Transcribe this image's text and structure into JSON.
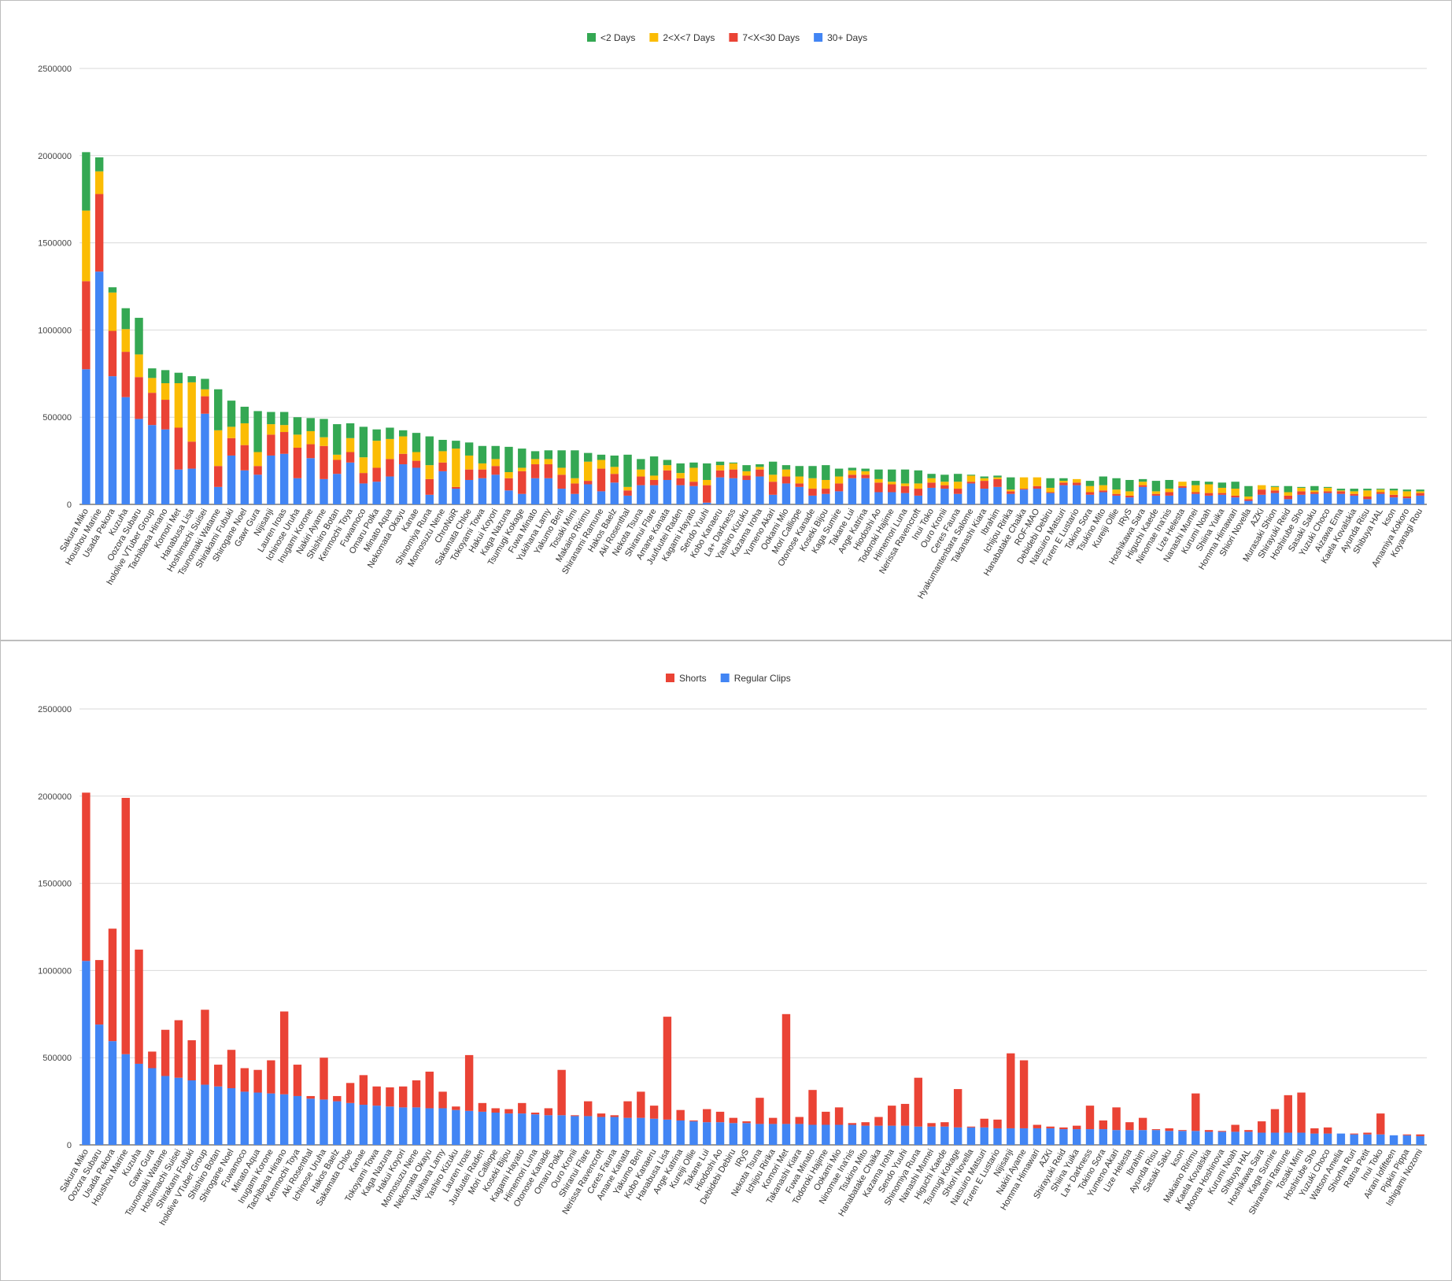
{
  "colors": {
    "lt2": "#34a853",
    "d2to7": "#fbbc04",
    "d7to30": "#ea4335",
    "d30plus": "#4285f4",
    "shorts": "#ea4335",
    "regular": "#4285f4"
  },
  "chart_data": [
    {
      "type": "bar",
      "stacked": true,
      "legend_position": "top",
      "grid": true,
      "ylim": [
        0,
        2500000
      ],
      "yticks": [
        "0",
        "500000",
        "1000000",
        "1500000",
        "2000000",
        "2500000"
      ],
      "categories": [
        "Sakura Miko",
        "Houshou Marine",
        "Usada Pekora",
        "Kuzuha",
        "Oozora Subaru",
        "hololive VTuber Group",
        "Tachibana Hinano",
        "Komori Met",
        "Hanabusa Lisa",
        "Hoshimachi Suisei",
        "Tsunomaki Watame",
        "Shirakami Fubuki",
        "Shirogane Noel",
        "Gawr Gura",
        "Nijisanji",
        "Lauren Iroas",
        "Ichinose Uruha",
        "Inugami Korone",
        "Nakiri Ayame",
        "Shishiro Botan",
        "Kenmochi Toya",
        "Fuwamoco",
        "Omaru Polka",
        "Minato Aqua",
        "Nekomata Okayu",
        "Kanae",
        "Shinomiya Runa",
        "Momosuzu Nene",
        "ChroNoiR",
        "Sakamata Chloe",
        "Tokoyami Towa",
        "Hakui Koyori",
        "Kaga Nazuna",
        "Tsumugi Kokage",
        "Fuwa Minato",
        "Yukihana Lamy",
        "Yakumo Beni",
        "Tosaki Mimi",
        "Makaino Ririmu",
        "Shiranami Ramune",
        "Hakos Baelz",
        "Aki Rosenthal",
        "Nekota Tsuna",
        "Shiranui Flare",
        "Amane Kanata",
        "Juufuutei Raden",
        "Kagami Hayato",
        "Sendo Yuuhi",
        "Kobo Kanaeru",
        "La+ Darkness",
        "Yashiro Kizuku",
        "Kazama Iroha",
        "Yumeno Akari",
        "Ookami Mio",
        "Mori Calliope",
        "Otonose Kanade",
        "Koseki Bijou",
        "Kaga Sumire",
        "Takane Lui",
        "Ange Katrina",
        "Hiodoshi Ao",
        "Todoroki Hajime",
        "Himemori Luna",
        "Nerissa Ravencroft",
        "Inui Toko",
        "Ouro Kronii",
        "Ceres Fauna",
        "Hyakumantenbara Salome",
        "Takanashi Kiara",
        "Ibrahim",
        "Ichijou Ririka",
        "Hanabatake Chaika",
        "ROF-MAO",
        "Debidebi Debiru",
        "Natsuiro Matsuri",
        "Furen E Lustario",
        "Tokino Sora",
        "Tsukino Mito",
        "Kureiji Ollie",
        "IRyS",
        "Hoshikawa Sara",
        "Higuchi Kaede",
        "Ninomae Ina'nis",
        "Lize Helesta",
        "Nanashi Mumei",
        "Kurumi Noah",
        "Shiina Yuika",
        "Homma Himawari",
        "Shiori Novella",
        "AZKi",
        "Murasaki Shion",
        "Shirayuki Reid",
        "Hoshirube Sho",
        "Sasaki Saku",
        "Yuzuki Choco",
        "Aizawa Ema",
        "Kaela Kovalskia",
        "Ayunda Risu",
        "Shibuya HAL",
        "kson",
        "Amamiya Kokoro",
        "Koyanagi Rou"
      ],
      "series": [
        {
          "name": "30+ Days",
          "values": [
            775000,
            1335000,
            735000,
            615000,
            490000,
            455000,
            430000,
            200000,
            205000,
            520000,
            100000,
            280000,
            195000,
            170000,
            280000,
            290000,
            150000,
            265000,
            145000,
            175000,
            240000,
            120000,
            130000,
            160000,
            230000,
            210000,
            55000,
            190000,
            90000,
            140000,
            150000,
            170000,
            80000,
            60000,
            150000,
            150000,
            90000,
            60000,
            115000,
            75000,
            125000,
            50000,
            110000,
            110000,
            140000,
            110000,
            105000,
            10000,
            155000,
            150000,
            140000,
            160000,
            55000,
            120000,
            100000,
            50000,
            60000,
            75000,
            150000,
            150000,
            70000,
            70000,
            65000,
            50000,
            95000,
            90000,
            60000,
            120000,
            90000,
            100000,
            60000,
            85000,
            90000,
            65000,
            110000,
            110000,
            55000,
            70000,
            50000,
            40000,
            100000,
            50000,
            50000,
            95000,
            60000,
            50000,
            55000,
            40000,
            20000,
            55000,
            65000,
            30000,
            55000,
            60000,
            65000,
            60000,
            50000,
            30000,
            60000,
            40000,
            35000,
            50000
          ]
        },
        {
          "name": "7<X<30 Days",
          "values": [
            505000,
            445000,
            260000,
            260000,
            240000,
            185000,
            170000,
            240000,
            155000,
            100000,
            120000,
            100000,
            145000,
            50000,
            120000,
            125000,
            175000,
            80000,
            190000,
            80000,
            60000,
            60000,
            80000,
            100000,
            60000,
            40000,
            90000,
            50000,
            10000,
            60000,
            50000,
            50000,
            70000,
            130000,
            80000,
            80000,
            80000,
            60000,
            20000,
            130000,
            50000,
            30000,
            50000,
            30000,
            55000,
            40000,
            25000,
            100000,
            40000,
            50000,
            25000,
            40000,
            75000,
            40000,
            20000,
            40000,
            30000,
            45000,
            20000,
            20000,
            55000,
            45000,
            40000,
            40000,
            30000,
            20000,
            30000,
            10000,
            45000,
            45000,
            15000,
            5000,
            15000,
            5000,
            15000,
            15000,
            15000,
            10000,
            10000,
            10000,
            10000,
            10000,
            20000,
            10000,
            10000,
            15000,
            10000,
            10000,
            10000,
            30000,
            15000,
            20000,
            20000,
            10000,
            10000,
            15000,
            10000,
            15000,
            10000,
            15000,
            10000,
            15000
          ]
        },
        {
          "name": "2<X<7 Days",
          "values": [
            405000,
            130000,
            220000,
            130000,
            130000,
            85000,
            95000,
            255000,
            340000,
            40000,
            205000,
            65000,
            125000,
            80000,
            60000,
            40000,
            75000,
            75000,
            50000,
            30000,
            80000,
            90000,
            155000,
            115000,
            100000,
            50000,
            80000,
            65000,
            220000,
            80000,
            35000,
            40000,
            35000,
            20000,
            30000,
            30000,
            40000,
            30000,
            110000,
            50000,
            40000,
            20000,
            40000,
            25000,
            30000,
            30000,
            80000,
            30000,
            30000,
            35000,
            25000,
            15000,
            40000,
            40000,
            40000,
            60000,
            50000,
            40000,
            25000,
            20000,
            20000,
            15000,
            15000,
            30000,
            25000,
            20000,
            40000,
            35000,
            15000,
            10000,
            10000,
            65000,
            50000,
            25000,
            10000,
            20000,
            35000,
            30000,
            25000,
            25000,
            20000,
            15000,
            20000,
            25000,
            40000,
            50000,
            30000,
            40000,
            15000,
            25000,
            20000,
            20000,
            20000,
            10000,
            20000,
            5000,
            15000,
            35000,
            15000,
            25000,
            30000,
            10000
          ]
        },
        {
          "name": "<2 Days",
          "values": [
            335000,
            80000,
            30000,
            120000,
            210000,
            55000,
            75000,
            60000,
            35000,
            60000,
            235000,
            150000,
            95000,
            235000,
            70000,
            75000,
            100000,
            75000,
            105000,
            175000,
            85000,
            175000,
            65000,
            65000,
            35000,
            110000,
            165000,
            65000,
            45000,
            75000,
            100000,
            75000,
            145000,
            110000,
            45000,
            50000,
            100000,
            160000,
            50000,
            30000,
            65000,
            185000,
            60000,
            110000,
            30000,
            55000,
            30000,
            95000,
            20000,
            5000,
            35000,
            15000,
            75000,
            25000,
            60000,
            70000,
            85000,
            45000,
            15000,
            15000,
            55000,
            70000,
            80000,
            75000,
            25000,
            40000,
            45000,
            5000,
            10000,
            10000,
            70000,
            0,
            0,
            55000,
            15000,
            0,
            30000,
            50000,
            65000,
            65000,
            15000,
            60000,
            50000,
            0,
            25000,
            15000,
            30000,
            40000,
            60000,
            0,
            5000,
            35000,
            5000,
            25000,
            5000,
            10000,
            15000,
            10000,
            5000,
            10000,
            10000,
            10000
          ]
        }
      ]
    },
    {
      "type": "bar",
      "stacked": true,
      "legend_position": "top",
      "grid": true,
      "ylim": [
        0,
        2500000
      ],
      "yticks": [
        "0",
        "500000",
        "1000000",
        "1500000",
        "2000000",
        "2500000"
      ],
      "categories": [
        "Sakura Miko",
        "Oozora Subaru",
        "Usada Pekora",
        "Houshou Marine",
        "Kuzuha",
        "Gawr Gura",
        "Tsunomaki Watame",
        "Hoshimachi Suisei",
        "Shirakami Fubuki",
        "hololive VTuber Group",
        "Shishiro Botan",
        "Shirogane Noel",
        "Fuwamoco",
        "Minato Aqua",
        "Inugami Korone",
        "Tachibana Hinano",
        "Kenmochi Toya",
        "Aki Rosenthal",
        "Ichinose Uruha",
        "Hakos Baelz",
        "Sakamata Chloe",
        "Kanae",
        "Tokoyami Towa",
        "Kaga Nazuna",
        "Hakui Koyori",
        "Momosuzu Nene",
        "Nekomata Okayu",
        "Yukihana Lamy",
        "Yashiro Kizuku",
        "Lauren Iroas",
        "Juufuutei Raden",
        "Mori Calliope",
        "Koseki Bijou",
        "Kagami Hayato",
        "Himemori Luna",
        "Otonose Kanade",
        "Omaru Polka",
        "Ouro Kronii",
        "Shiranui Flare",
        "Nerissa Ravencroft",
        "Ceres Fauna",
        "Amane Kanata",
        "Yakumo Beni",
        "Kobo Kanaeru",
        "Hanabusa Lisa",
        "Ange Katrina",
        "Kureiji Ollie",
        "Takane Lui",
        "Hiodoshi Ao",
        "Debidebi Debiru",
        "IRyS",
        "Nekota Tsuna",
        "Ichijou Ririka",
        "Komori Met",
        "Takanashi Kiara",
        "Fuwa Minato",
        "Todoroki Hajime",
        "Ookami Mio",
        "Ninomae Ina'nis",
        "Tsukino Mito",
        "Hanabatake Chaika",
        "Kazama Iroha",
        "Sendo Yuuhi",
        "Shinomiya Runa",
        "Nanashi Mumei",
        "Higuchi Kaede",
        "Tsumugi Kokage",
        "Shiori Novella",
        "Natsuiro Matsuri",
        "Furen E Lustario",
        "Nijisanji",
        "Nakiri Ayame",
        "Homma Himawari",
        "AZKi",
        "Shirayuki Reid",
        "Shiina Yuika",
        "La+ Darkness",
        "Tokino Sora",
        "Yumeno Akari",
        "Lize Helesta",
        "Ibrahim",
        "Ayunda Risu",
        "Sasaki Saku",
        "kson",
        "Makaino Ririmu",
        "Kaela Kovalskia",
        "Moona Hoshinova",
        "Kurumi Noah",
        "Shibuya HAL",
        "Hoshikawa Sara",
        "Kaga Sumire",
        "Shiranami Ramune",
        "Tosaki Mimi",
        "Hoshirube Sho",
        "Yuzuki Choco",
        "Watson Amelia",
        "Shiorha Ruri",
        "Ratna Petit",
        "Inui Toko",
        "Airani Iofifteen",
        "Pipkin Pippa",
        "Ishigami Nozomi"
      ],
      "series": [
        {
          "name": "Regular Clips",
          "values": [
            1055000,
            690000,
            595000,
            520000,
            465000,
            440000,
            395000,
            385000,
            370000,
            345000,
            335000,
            325000,
            305000,
            300000,
            295000,
            290000,
            280000,
            265000,
            260000,
            250000,
            240000,
            230000,
            225000,
            220000,
            215000,
            215000,
            210000,
            210000,
            200000,
            195000,
            190000,
            185000,
            180000,
            180000,
            175000,
            170000,
            170000,
            165000,
            165000,
            160000,
            160000,
            155000,
            155000,
            150000,
            145000,
            140000,
            135000,
            130000,
            130000,
            125000,
            125000,
            120000,
            120000,
            120000,
            120000,
            115000,
            115000,
            115000,
            115000,
            110000,
            110000,
            110000,
            110000,
            105000,
            105000,
            105000,
            100000,
            100000,
            100000,
            95000,
            95000,
            95000,
            95000,
            95000,
            90000,
            90000,
            90000,
            90000,
            85000,
            85000,
            85000,
            85000,
            80000,
            80000,
            80000,
            75000,
            75000,
            75000,
            75000,
            70000,
            70000,
            70000,
            70000,
            65000,
            65000,
            65000,
            60000,
            60000,
            60000,
            55000,
            55000,
            50000
          ]
        },
        {
          "name": "Shorts",
          "values": [
            965000,
            370000,
            645000,
            1470000,
            655000,
            95000,
            265000,
            330000,
            230000,
            430000,
            125000,
            220000,
            135000,
            130000,
            190000,
            475000,
            180000,
            15000,
            240000,
            30000,
            115000,
            170000,
            110000,
            110000,
            120000,
            155000,
            210000,
            95000,
            20000,
            320000,
            50000,
            25000,
            25000,
            60000,
            10000,
            40000,
            260000,
            5000,
            85000,
            20000,
            10000,
            95000,
            150000,
            75000,
            590000,
            60000,
            5000,
            75000,
            60000,
            30000,
            10000,
            150000,
            35000,
            630000,
            40000,
            200000,
            75000,
            100000,
            10000,
            20000,
            50000,
            115000,
            125000,
            280000,
            20000,
            25000,
            220000,
            5000,
            50000,
            50000,
            430000,
            390000,
            20000,
            10000,
            10000,
            20000,
            135000,
            50000,
            130000,
            45000,
            70000,
            5000,
            15000,
            5000,
            215000,
            10000,
            5000,
            40000,
            10000,
            65000,
            135000,
            215000,
            230000,
            30000,
            35000,
            0,
            5000,
            10000,
            120000,
            0,
            5000,
            10000
          ]
        }
      ]
    }
  ]
}
